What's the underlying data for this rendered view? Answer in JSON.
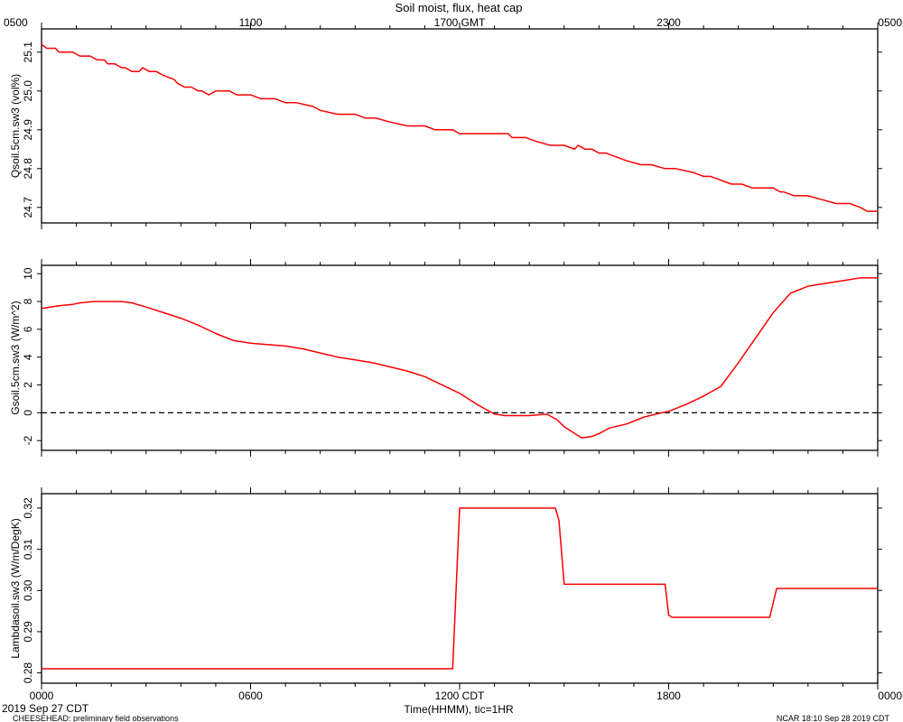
{
  "title": "Soil moist, flux, heat cap",
  "top_axis": {
    "ticks": [
      {
        "label": "0500",
        "hour": 0
      },
      {
        "label": "1100",
        "hour": 6
      },
      {
        "label": "1700 GMT",
        "hour": 12
      },
      {
        "label": "2300",
        "hour": 18
      },
      {
        "label": "0500",
        "hour": 24
      }
    ]
  },
  "bottom_axis": {
    "label": "Time(HHMM), tic=1HR",
    "ticks": [
      {
        "label": "0000",
        "hour": 0
      },
      {
        "label": "0600",
        "hour": 6
      },
      {
        "label": "1200 CDT",
        "hour": 12
      },
      {
        "label": "1800",
        "hour": 18
      },
      {
        "label": "0000",
        "hour": 24
      }
    ]
  },
  "footer": {
    "date": "2019 Sep 27 CDT",
    "project": "CHEESEHEAD: preliminary field observations",
    "stamp": "NCAR 18:10 Sep 28 2019 CDT"
  },
  "colors": {
    "series": "#ff0000",
    "axis": "#000000",
    "zero_line": "#000000"
  },
  "chart_data": [
    {
      "type": "line",
      "ylabel": "Qsoil.5cm.sw3 (vol%)",
      "ylim": [
        24.66,
        25.16
      ],
      "yticks": [
        24.7,
        24.8,
        24.9,
        25.0,
        25.1
      ],
      "ytick_labels": [
        "24.7",
        "24.8",
        "24.9",
        "25.0",
        "25.1"
      ],
      "xlim": [
        0,
        24
      ],
      "x_units": "hours since 0000 CDT",
      "series": [
        {
          "x": [
            0,
            0.15,
            0.4,
            0.5,
            0.9,
            1.1,
            1.4,
            1.6,
            1.8,
            1.9,
            2.1,
            2.3,
            2.4,
            2.6,
            2.8,
            2.9,
            3.1,
            3.3,
            3.5,
            3.8,
            3.9,
            4.1,
            4.3,
            4.5,
            4.6,
            4.8,
            5.0,
            5.1,
            5.4,
            5.6,
            6.0,
            6.3,
            6.7,
            7.0,
            7.3,
            7.8,
            8.0,
            8.5,
            9.0,
            9.3,
            9.6,
            10.0,
            10.5,
            11.0,
            11.3,
            11.8,
            12.0,
            12.5,
            13.0,
            13.4,
            13.5,
            13.9,
            14.2,
            14.6,
            15.0,
            15.3,
            15.4,
            15.6,
            15.8,
            16.0,
            16.2,
            16.5,
            16.8,
            17.2,
            17.5,
            17.9,
            18.2,
            18.7,
            19.0,
            19.2,
            19.5,
            19.8,
            20.1,
            20.4,
            20.6,
            20.8,
            21.0,
            21.2,
            21.3,
            21.6,
            22.0,
            22.4,
            22.8,
            23.2,
            23.5,
            23.7,
            24.0
          ],
          "y": [
            25.12,
            25.11,
            25.11,
            25.1,
            25.1,
            25.09,
            25.09,
            25.08,
            25.08,
            25.07,
            25.07,
            25.06,
            25.06,
            25.05,
            25.05,
            25.06,
            25.05,
            25.05,
            25.04,
            25.03,
            25.02,
            25.01,
            25.01,
            25.0,
            25.0,
            24.99,
            25.0,
            25.0,
            25.0,
            24.99,
            24.99,
            24.98,
            24.98,
            24.97,
            24.97,
            24.96,
            24.95,
            24.94,
            24.94,
            24.93,
            24.93,
            24.92,
            24.91,
            24.91,
            24.9,
            24.9,
            24.89,
            24.89,
            24.89,
            24.89,
            24.88,
            24.88,
            24.87,
            24.86,
            24.86,
            24.85,
            24.86,
            24.85,
            24.85,
            24.84,
            24.84,
            24.83,
            24.82,
            24.81,
            24.81,
            24.8,
            24.8,
            24.79,
            24.78,
            24.78,
            24.77,
            24.76,
            24.76,
            24.75,
            24.75,
            24.75,
            24.75,
            24.74,
            24.74,
            24.73,
            24.73,
            24.72,
            24.71,
            24.71,
            24.7,
            24.69,
            24.69
          ]
        }
      ]
    },
    {
      "type": "line",
      "ylabel": "Gsoil.5cm.sw3 (W/m^2)",
      "ylim": [
        -2.7,
        10.6
      ],
      "yticks": [
        -2,
        0,
        2,
        4,
        6,
        8,
        10
      ],
      "ytick_labels": [
        "-2",
        "0",
        "2",
        "4",
        "6",
        "8",
        "10"
      ],
      "reference_line": 0,
      "xlim": [
        0,
        24
      ],
      "x_units": "hours since 0000 CDT",
      "series": [
        {
          "x": [
            0,
            0.5,
            0.9,
            1.1,
            1.5,
            2.0,
            2.3,
            2.6,
            3.0,
            3.5,
            4.0,
            4.5,
            5.0,
            5.5,
            6.0,
            6.5,
            7.0,
            7.5,
            8.0,
            8.5,
            9.0,
            9.5,
            10.0,
            10.5,
            11.0,
            11.5,
            12.0,
            12.5,
            13.0,
            13.3,
            13.5,
            14.0,
            14.5,
            14.8,
            15.0,
            15.5,
            15.8,
            16.0,
            16.3,
            16.8,
            17.3,
            17.8,
            18.0,
            18.5,
            19.0,
            19.5,
            20.0,
            20.5,
            21.0,
            21.5,
            22.0,
            22.5,
            23.0,
            23.5,
            24.0
          ],
          "y": [
            7.5,
            7.7,
            7.8,
            7.9,
            8.0,
            8.0,
            8.0,
            7.9,
            7.6,
            7.2,
            6.8,
            6.3,
            5.7,
            5.2,
            5.0,
            4.9,
            4.8,
            4.6,
            4.3,
            4.0,
            3.8,
            3.6,
            3.3,
            3.0,
            2.6,
            2.0,
            1.4,
            0.6,
            -0.1,
            -0.2,
            -0.2,
            -0.2,
            -0.1,
            -0.5,
            -1.0,
            -1.8,
            -1.7,
            -1.5,
            -1.1,
            -0.8,
            -0.3,
            0.0,
            0.1,
            0.6,
            1.2,
            1.9,
            3.6,
            5.4,
            7.2,
            8.6,
            9.1,
            9.3,
            9.5,
            9.7,
            9.7
          ]
        }
      ]
    },
    {
      "type": "line",
      "ylabel": "Lambdasoil.sw3 (W/m/DegK)",
      "ylim": [
        0.2775,
        0.3235
      ],
      "yticks": [
        0.28,
        0.29,
        0.3,
        0.31,
        0.32
      ],
      "ytick_labels": [
        "0.28",
        "0.29",
        "0.30",
        "0.31",
        "0.32"
      ],
      "xlim": [
        0,
        24
      ],
      "x_units": "hours since 0000 CDT",
      "series": [
        {
          "x": [
            0,
            11.8,
            12.0,
            14.75,
            14.85,
            15.0,
            17.9,
            18.0,
            18.1,
            20.9,
            21.1,
            24.0
          ],
          "y": [
            0.281,
            0.281,
            0.32,
            0.32,
            0.317,
            0.3015,
            0.3015,
            0.294,
            0.2935,
            0.2935,
            0.3005,
            0.3005
          ]
        }
      ]
    }
  ]
}
